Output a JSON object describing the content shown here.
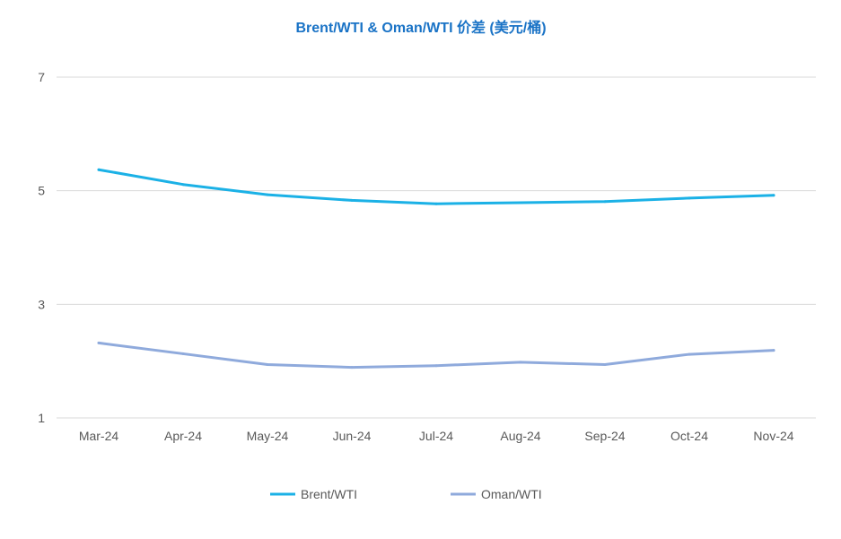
{
  "chart_data": {
    "type": "line",
    "title": "Brent/WTI & Oman/WTI 价差 (美元/桶)",
    "xlabel": "",
    "ylabel": "",
    "categories": [
      "Mar-24",
      "Apr-24",
      "May-24",
      "Jun-24",
      "Jul-24",
      "Aug-24",
      "Sep-24",
      "Oct-24",
      "Nov-24"
    ],
    "ylim": [
      1,
      7
    ],
    "yticks": [
      1,
      3,
      5,
      7
    ],
    "grid": true,
    "legend_position": "bottom",
    "series": [
      {
        "name": "Brent/WTI",
        "color": "#1bb1e6",
        "values": [
          5.37,
          5.11,
          4.93,
          4.83,
          4.77,
          4.79,
          4.81,
          4.87,
          4.92
        ]
      },
      {
        "name": "Oman/WTI",
        "color": "#8faadc",
        "values": [
          2.32,
          2.13,
          1.94,
          1.89,
          1.92,
          1.98,
          1.94,
          2.12,
          2.19
        ]
      }
    ]
  }
}
